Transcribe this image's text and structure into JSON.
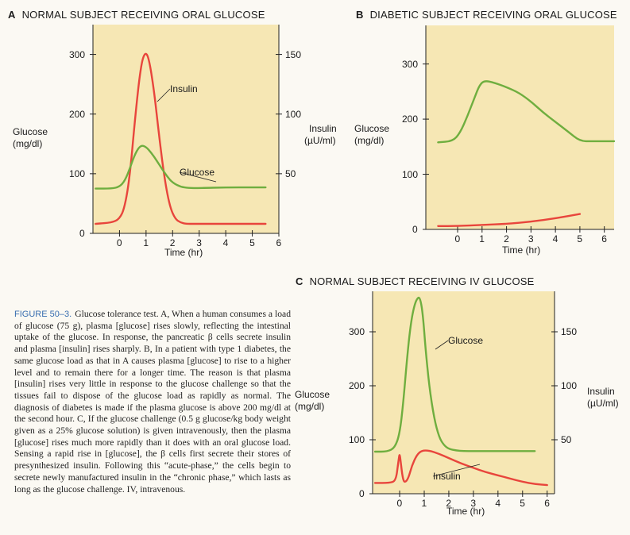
{
  "caption": {
    "figure_label": "FIGURE 50–3.",
    "text": "Glucose tolerance test. A, When a human consumes a load of glucose (75 g), plasma [glucose] rises slowly, reflecting the intestinal uptake of the glucose. In response, the pancreatic β cells secrete insulin and plasma [insulin] rises sharply. B, In a patient with type 1 diabetes, the same glucose load as that in A causes plasma [glucose] to rise to a higher level and to remain there for a longer time. The reason is that plasma [insulin] rises very little in response to the glucose challenge so that the tissues fail to dispose of the glucose load as rapidly as normal. The diagnosis of diabetes is made if the plasma glucose is above 200 mg/dl at the second hour. C, If the glucose challenge (0.5 g glucose/kg body weight given as a 25% glucose solution) is given intravenously, then the plasma [glucose] rises much more rapidly than it does with an oral glucose load. Sensing a rapid rise in [glucose], the β cells first secrete their stores of presynthesized insulin. Following this “acute-phase,” the cells begin to secrete newly manufactured insulin in the “chronic phase,” which lasts as long as the glucose challenge. IV, intravenous."
  },
  "colors": {
    "plot_bg": "#f6e7b4",
    "glucose": "#6fae3f",
    "insulin": "#e8453c",
    "axis": "#222222"
  },
  "chart_data": [
    {
      "id": "A",
      "letter": "A",
      "title": "NORMAL SUBJECT RECEIVING ORAL GLUCOSE",
      "type": "line",
      "xlabel": "Time (hr)",
      "ylabel_left": [
        "Glucose",
        "(mg/dl)"
      ],
      "ylabel_right": [
        "Insulin",
        "(µU/ml)"
      ],
      "xlim": [
        -1,
        6
      ],
      "x_ticks": [
        0,
        1,
        2,
        3,
        4,
        5,
        6
      ],
      "ylim_left": [
        0,
        350
      ],
      "y_ticks_left": [
        0,
        100,
        200,
        300
      ],
      "ylim_right": [
        0,
        175
      ],
      "y_ticks_right": [
        50,
        100,
        150
      ],
      "grid": false,
      "series": [
        {
          "name": "Insulin",
          "axis": "right",
          "color": "#e8453c",
          "x": [
            -0.9,
            -0.3,
            0.0,
            0.2,
            0.4,
            0.6,
            0.8,
            0.95,
            1.1,
            1.3,
            1.5,
            1.7,
            1.9,
            2.1,
            2.3,
            2.5,
            2.8,
            3.5,
            4.5,
            5.5
          ],
          "y": [
            8,
            9,
            12,
            22,
            50,
            100,
            140,
            152,
            148,
            120,
            80,
            45,
            22,
            12,
            9,
            8,
            8,
            8,
            8,
            8
          ]
        },
        {
          "name": "Glucose",
          "axis": "left",
          "color": "#6fae3f",
          "x": [
            -0.9,
            -0.3,
            0.0,
            0.2,
            0.4,
            0.6,
            0.8,
            1.0,
            1.2,
            1.4,
            1.6,
            1.8,
            2.0,
            2.3,
            2.6,
            3.0,
            4.0,
            5.0,
            5.5
          ],
          "y": [
            75,
            75,
            78,
            88,
            110,
            135,
            148,
            145,
            135,
            122,
            108,
            95,
            85,
            78,
            76,
            76,
            77,
            77,
            77
          ]
        }
      ],
      "annotations": [
        {
          "text": "Insulin",
          "series": 0
        },
        {
          "text": "Glucose",
          "series": 1
        }
      ]
    },
    {
      "id": "B",
      "letter": "B",
      "title": "DIABETIC SUBJECT RECEIVING ORAL GLUCOSE",
      "type": "line",
      "xlabel": "Time (hr)",
      "ylabel_left": [
        "Glucose",
        "(mg/dl)"
      ],
      "ylabel_right": [],
      "xlim": [
        -1.3,
        6.4
      ],
      "x_ticks": [
        0,
        1,
        2,
        3,
        4,
        5,
        6
      ],
      "ylim_left": [
        0,
        370
      ],
      "y_ticks_left": [
        0,
        100,
        200,
        300
      ],
      "ylim_right": [
        0,
        185
      ],
      "y_ticks_right": [],
      "grid": false,
      "series": [
        {
          "name": "Glucose",
          "axis": "left",
          "color": "#6fae3f",
          "x": [
            -0.8,
            -0.2,
            0.1,
            0.4,
            0.7,
            0.9,
            1.1,
            1.5,
            2.0,
            2.5,
            3.0,
            3.5,
            4.0,
            4.5,
            5.0,
            5.5,
            6.0,
            6.4
          ],
          "y": [
            158,
            160,
            175,
            205,
            240,
            262,
            270,
            266,
            258,
            248,
            232,
            212,
            195,
            178,
            160,
            160,
            160,
            160
          ]
        },
        {
          "name": "Insulin",
          "axis": "right",
          "color": "#e8453c",
          "x": [
            -0.8,
            0.0,
            1.0,
            2.0,
            3.0,
            4.0,
            5.0
          ],
          "y": [
            3,
            3,
            4,
            5,
            7,
            10,
            14
          ]
        }
      ],
      "annotations": []
    },
    {
      "id": "C",
      "letter": "C",
      "title": "NORMAL SUBJECT RECEIVING IV GLUCOSE",
      "type": "line",
      "xlabel": "Time (hr)",
      "ylabel_left": [
        "Glucose",
        "(mg/dl)"
      ],
      "ylabel_right": [
        "Insulin",
        "(µU/ml)"
      ],
      "xlim": [
        -1.1,
        6.3
      ],
      "x_ticks": [
        0,
        1,
        2,
        3,
        4,
        5,
        6
      ],
      "ylim_left": [
        0,
        375
      ],
      "y_ticks_left": [
        0,
        100,
        200,
        300
      ],
      "ylim_right": [
        0,
        187.5
      ],
      "y_ticks_right": [
        50,
        100,
        150
      ],
      "grid": false,
      "series": [
        {
          "name": "Glucose",
          "axis": "left",
          "color": "#6fae3f",
          "x": [
            -1.0,
            -0.5,
            -0.2,
            0.0,
            0.15,
            0.3,
            0.45,
            0.6,
            0.75,
            0.85,
            0.95,
            1.05,
            1.2,
            1.4,
            1.6,
            1.8,
            2.0,
            2.3,
            2.6,
            3.0,
            4.0,
            5.0,
            5.5
          ],
          "y": [
            78,
            78,
            85,
            110,
            170,
            250,
            315,
            350,
            365,
            360,
            330,
            270,
            200,
            140,
            105,
            90,
            83,
            80,
            79,
            79,
            79,
            79,
            79
          ]
        },
        {
          "name": "Insulin",
          "axis": "right",
          "color": "#e8453c",
          "x": [
            -1.0,
            -0.4,
            -0.15,
            -0.05,
            0.0,
            0.05,
            0.12,
            0.2,
            0.35,
            0.5,
            0.7,
            0.9,
            1.2,
            1.6,
            2.0,
            2.5,
            3.0,
            3.5,
            4.0,
            4.5,
            5.0,
            5.5,
            6.0
          ],
          "y": [
            10,
            10,
            12,
            30,
            38,
            28,
            15,
            10,
            14,
            26,
            36,
            40,
            40,
            37,
            33,
            28,
            24,
            20,
            17,
            14,
            11,
            9,
            8
          ]
        }
      ],
      "annotations": [
        {
          "text": "Glucose",
          "series": 0
        },
        {
          "text": "Insulin",
          "series": 1
        }
      ]
    }
  ]
}
